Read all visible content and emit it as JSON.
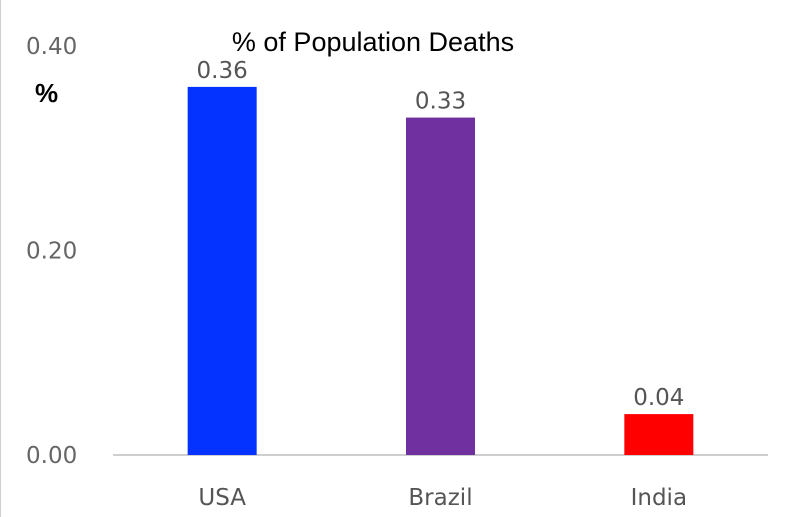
{
  "chart_data": {
    "type": "bar",
    "title": "% of Population Deaths",
    "unit_label": "%",
    "xlabel": "",
    "ylabel": "",
    "categories": [
      "USA",
      "Brazil",
      "India"
    ],
    "values": [
      0.36,
      0.33,
      0.04
    ],
    "value_labels": [
      "0.36",
      "0.33",
      "0.04"
    ],
    "bar_colors": [
      "#0433ff",
      "#7030a0",
      "#ff0000"
    ],
    "ylim": [
      0,
      0.4
    ],
    "y_ticks": [
      0,
      0.2,
      0.4
    ],
    "y_tick_labels": [
      "0.00",
      "0.20",
      "0.40"
    ],
    "grid": false,
    "legend": "none"
  }
}
